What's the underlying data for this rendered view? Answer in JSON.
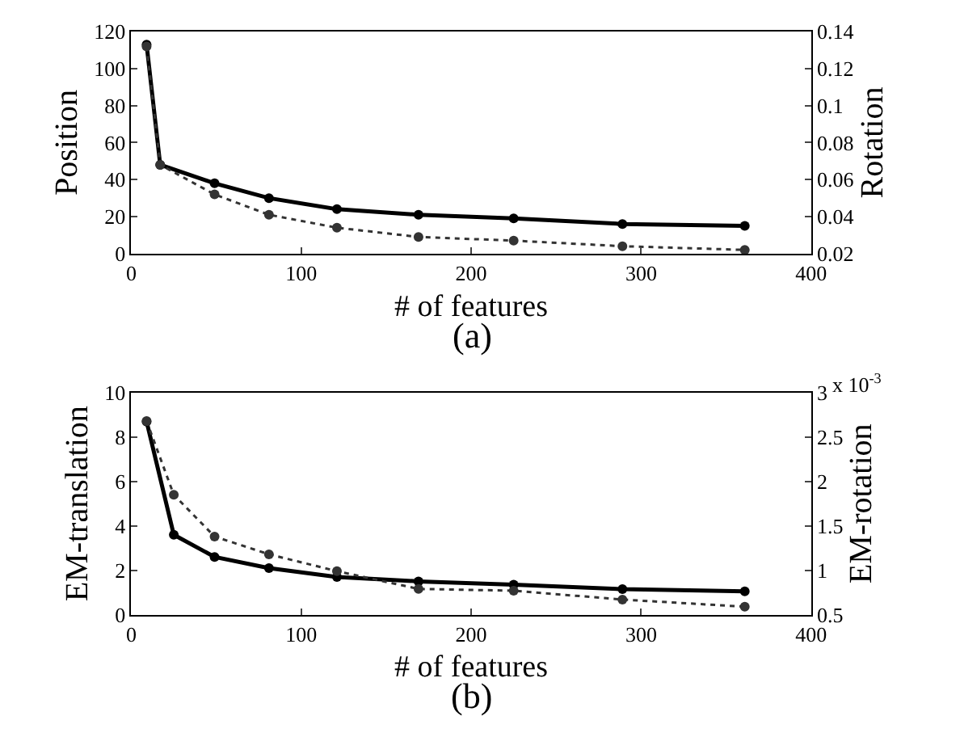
{
  "chart_data": [
    {
      "type": "line",
      "title": "(a)",
      "xlabel": "# of features",
      "ylabel": "Position",
      "y2label": "Rotation",
      "xlim": [
        0,
        400
      ],
      "xticks": [
        0,
        100,
        200,
        300,
        400
      ],
      "ylim": [
        0,
        120
      ],
      "yticks": [
        0,
        20,
        40,
        60,
        80,
        100,
        120
      ],
      "y2lim": [
        0.02,
        0.14
      ],
      "y2ticks": [
        0.02,
        0.04,
        0.06,
        0.08,
        0.1,
        0.12,
        0.14
      ],
      "marker": "circle",
      "series": [
        {
          "color": "#000000",
          "line_style": "solid",
          "x": [
            9,
            17,
            49,
            81,
            121,
            169,
            225,
            289,
            361
          ],
          "values": [
            113,
            48,
            38,
            30,
            24,
            21,
            19,
            16,
            15
          ]
        },
        {
          "color": "#333333",
          "line_style": "dotted",
          "axis": "y2",
          "x": [
            9,
            17,
            49,
            81,
            121,
            169,
            225,
            289,
            361
          ],
          "values": [
            0.132,
            0.068,
            0.052,
            0.041,
            0.034,
            0.029,
            0.027,
            0.024,
            0.022
          ]
        }
      ]
    },
    {
      "type": "line",
      "title": "(b)",
      "xlabel": "# of features",
      "ylabel": "EM-translation",
      "y2label": "EM-rotation",
      "annotations": [
        "x 10$^{-3}$"
      ],
      "xlim": [
        0,
        400
      ],
      "xticks": [
        0,
        100,
        200,
        300,
        400
      ],
      "ylim": [
        0,
        10
      ],
      "yticks": [
        0,
        2,
        4,
        6,
        8,
        10
      ],
      "y2lim": [
        0.5,
        3
      ],
      "y2ticks": [
        0.5,
        1,
        1.5,
        2,
        2.5,
        3
      ],
      "marker": "circle",
      "series": [
        {
          "color": "#000000",
          "line_style": "solid",
          "x": [
            9,
            25,
            49,
            81,
            121,
            169,
            225,
            289,
            361
          ],
          "values": [
            8.7,
            3.6,
            2.6,
            2.1,
            1.7,
            1.5,
            1.35,
            1.15,
            1.05
          ]
        },
        {
          "color": "#333333",
          "line_style": "dotted",
          "axis": "y2",
          "x": [
            9,
            25,
            49,
            81,
            121,
            169,
            225,
            289,
            361
          ],
          "values": [
            2.68,
            1.85,
            1.38,
            1.18,
            0.99,
            0.79,
            0.77,
            0.67,
            0.59
          ]
        }
      ]
    }
  ]
}
